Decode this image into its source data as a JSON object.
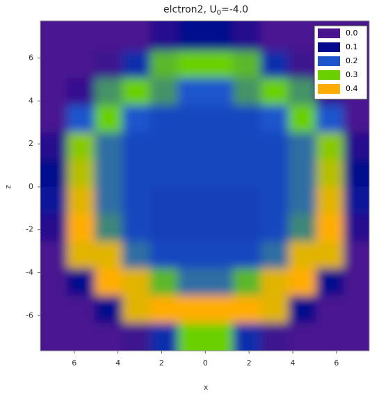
{
  "chart_data": {
    "type": "heatmap",
    "title": {
      "main": "elctron2, U",
      "sub": "0",
      "rest": "=-4.0"
    },
    "x_label": "x",
    "y_label": "z",
    "xlim": [
      -7.55,
      7.5
    ],
    "ylim": [
      -7.64,
      7.73
    ],
    "xticks": [
      {
        "value": -6,
        "label": "6"
      },
      {
        "value": -4,
        "label": "4"
      },
      {
        "value": -2,
        "label": "2"
      },
      0,
      2,
      4,
      6
    ],
    "yticks": [
      6,
      4,
      2,
      0,
      -2,
      -4,
      -6
    ],
    "x": [
      -6.97,
      -5.7,
      -4.43,
      -3.17,
      -1.9,
      -0.63,
      0.63,
      1.9,
      3.17,
      4.43,
      5.7,
      6.97
    ],
    "y": [
      6.97,
      5.7,
      4.43,
      3.17,
      1.9,
      0.63,
      -0.63,
      -1.9,
      -3.17,
      -4.43,
      -5.7,
      -6.97
    ],
    "values": [
      [
        0,
        0,
        0,
        0,
        0.05,
        0.1,
        0.1,
        0.05,
        0,
        0,
        0,
        0
      ],
      [
        0,
        0,
        0.02,
        0.15,
        0.28,
        0.3,
        0.3,
        0.28,
        0.15,
        0.02,
        0,
        0
      ],
      [
        0,
        0.03,
        0.25,
        0.3,
        0.25,
        0.2,
        0.2,
        0.25,
        0.3,
        0.25,
        0.03,
        0
      ],
      [
        0,
        0.2,
        0.3,
        0.2,
        0.18,
        0.18,
        0.18,
        0.18,
        0.2,
        0.3,
        0.2,
        0
      ],
      [
        0.05,
        0.32,
        0.22,
        0.18,
        0.18,
        0.18,
        0.18,
        0.18,
        0.18,
        0.22,
        0.32,
        0.05
      ],
      [
        0.1,
        0.35,
        0.22,
        0.18,
        0.18,
        0.18,
        0.18,
        0.18,
        0.18,
        0.22,
        0.35,
        0.1
      ],
      [
        0.12,
        0.38,
        0.22,
        0.18,
        0.17,
        0.17,
        0.17,
        0.17,
        0.18,
        0.22,
        0.38,
        0.12
      ],
      [
        0.05,
        0.4,
        0.24,
        0.18,
        0.17,
        0.17,
        0.17,
        0.17,
        0.18,
        0.24,
        0.4,
        0.05
      ],
      [
        0,
        0.38,
        0.38,
        0.22,
        0.18,
        0.18,
        0.18,
        0.18,
        0.22,
        0.38,
        0.38,
        0
      ],
      [
        0,
        0.1,
        0.42,
        0.38,
        0.28,
        0.22,
        0.22,
        0.28,
        0.38,
        0.42,
        0.1,
        0
      ],
      [
        0,
        0,
        0.1,
        0.38,
        0.42,
        0.4,
        0.4,
        0.42,
        0.38,
        0.1,
        0,
        0
      ],
      [
        0,
        0,
        0,
        0.02,
        0.15,
        0.3,
        0.3,
        0.15,
        0.02,
        0,
        0,
        0
      ]
    ],
    "legend": {
      "position": "upper right",
      "levels": [
        {
          "value": 0.0,
          "label": "0.0",
          "color": "#4a1490"
        },
        {
          "value": 0.1,
          "label": "0.1",
          "color": "#050a8c"
        },
        {
          "value": 0.2,
          "label": "0.2",
          "color": "#1e55cc"
        },
        {
          "value": 0.3,
          "label": "0.3",
          "color": "#6bd000"
        },
        {
          "value": 0.4,
          "label": "0.4",
          "color": "#ffad00"
        }
      ]
    }
  }
}
